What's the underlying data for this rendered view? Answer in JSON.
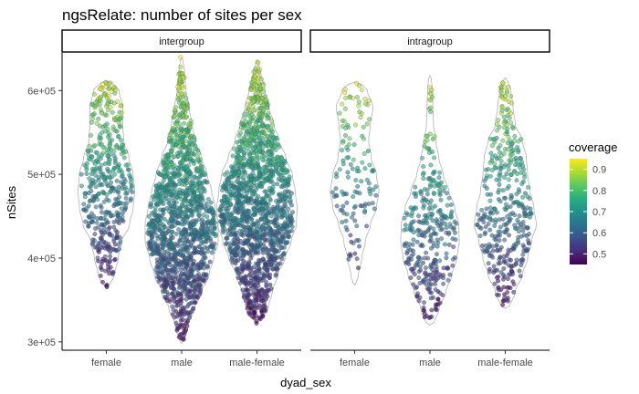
{
  "chart_data": {
    "type": "scatter",
    "subtype": "violin-with-jittered-points",
    "title": "ngsRelate: number of sites per sex",
    "xlabel": "dyad_sex",
    "ylabel": "nSites",
    "categories": [
      "female",
      "male",
      "male-female"
    ],
    "y_ticks": [
      300000,
      400000,
      500000,
      600000
    ],
    "y_tick_labels": [
      "3e+05",
      "4e+05",
      "5e+05",
      "6e+05"
    ],
    "ylim": [
      290000,
      645000
    ],
    "grid": false,
    "color_scale": "viridis",
    "legend": {
      "title": "coverage",
      "position": "right",
      "range": [
        0.45,
        0.95
      ],
      "ticks": [
        0.5,
        0.6,
        0.7,
        0.8,
        0.9
      ],
      "tick_labels": [
        "0.5",
        "0.6",
        "0.7",
        "0.8",
        "0.9"
      ]
    },
    "panels": [
      {
        "label": "intergroup",
        "groups": [
          {
            "category": "female",
            "n_points": 450,
            "min": 365000,
            "max": 612000,
            "median": 490000,
            "profile": [
              [
                365000,
                0.08
              ],
              [
                380000,
                0.28
              ],
              [
                400000,
                0.42
              ],
              [
                420000,
                0.55
              ],
              [
                440000,
                0.82
              ],
              [
                460000,
                0.95
              ],
              [
                480000,
                1.0
              ],
              [
                500000,
                0.95
              ],
              [
                520000,
                0.8
              ],
              [
                540000,
                0.62
              ],
              [
                560000,
                0.58
              ],
              [
                580000,
                0.58
              ],
              [
                600000,
                0.45
              ],
              [
                612000,
                0.15
              ]
            ]
          },
          {
            "category": "male",
            "n_points": 1350,
            "min": 298000,
            "max": 640000,
            "median": 440000,
            "profile": [
              [
                298000,
                0.05
              ],
              [
                320000,
                0.18
              ],
              [
                340000,
                0.35
              ],
              [
                360000,
                0.55
              ],
              [
                380000,
                0.75
              ],
              [
                400000,
                0.88
              ],
              [
                420000,
                1.0
              ],
              [
                440000,
                1.0
              ],
              [
                460000,
                0.92
              ],
              [
                480000,
                0.82
              ],
              [
                500000,
                0.7
              ],
              [
                520000,
                0.55
              ],
              [
                540000,
                0.38
              ],
              [
                560000,
                0.28
              ],
              [
                580000,
                0.2
              ],
              [
                600000,
                0.12
              ],
              [
                620000,
                0.08
              ],
              [
                640000,
                0.03
              ]
            ]
          },
          {
            "category": "male-female",
            "n_points": 1500,
            "min": 322000,
            "max": 635000,
            "median": 465000,
            "profile": [
              [
                322000,
                0.05
              ],
              [
                340000,
                0.28
              ],
              [
                360000,
                0.38
              ],
              [
                380000,
                0.52
              ],
              [
                400000,
                0.7
              ],
              [
                420000,
                0.85
              ],
              [
                440000,
                0.98
              ],
              [
                460000,
                1.0
              ],
              [
                480000,
                0.95
              ],
              [
                500000,
                0.88
              ],
              [
                520000,
                0.72
              ],
              [
                540000,
                0.55
              ],
              [
                560000,
                0.42
              ],
              [
                580000,
                0.3
              ],
              [
                600000,
                0.2
              ],
              [
                620000,
                0.1
              ],
              [
                635000,
                0.03
              ]
            ]
          }
        ]
      },
      {
        "label": "intragroup",
        "groups": [
          {
            "category": "female",
            "n_points": 130,
            "min": 368000,
            "max": 610000,
            "median": 480000,
            "profile": [
              [
                368000,
                0.05
              ],
              [
                380000,
                0.15
              ],
              [
                400000,
                0.28
              ],
              [
                420000,
                0.42
              ],
              [
                440000,
                0.62
              ],
              [
                460000,
                0.85
              ],
              [
                480000,
                0.95
              ],
              [
                500000,
                0.85
              ],
              [
                520000,
                0.65
              ],
              [
                540000,
                0.55
              ],
              [
                560000,
                0.62
              ],
              [
                580000,
                0.72
              ],
              [
                600000,
                0.5
              ],
              [
                610000,
                0.2
              ]
            ]
          },
          {
            "category": "male",
            "n_points": 330,
            "min": 320000,
            "max": 618000,
            "median": 430000,
            "profile": [
              [
                320000,
                0.12
              ],
              [
                340000,
                0.32
              ],
              [
                360000,
                0.55
              ],
              [
                380000,
                0.75
              ],
              [
                400000,
                0.92
              ],
              [
                420000,
                1.0
              ],
              [
                440000,
                0.98
              ],
              [
                460000,
                0.85
              ],
              [
                480000,
                0.65
              ],
              [
                500000,
                0.45
              ],
              [
                520000,
                0.3
              ],
              [
                540000,
                0.2
              ],
              [
                560000,
                0.12
              ],
              [
                580000,
                0.1
              ],
              [
                600000,
                0.08
              ],
              [
                618000,
                0.04
              ]
            ]
          },
          {
            "category": "male-female",
            "n_points": 390,
            "min": 340000,
            "max": 615000,
            "median": 455000,
            "profile": [
              [
                340000,
                0.12
              ],
              [
                360000,
                0.32
              ],
              [
                380000,
                0.55
              ],
              [
                400000,
                0.72
              ],
              [
                420000,
                0.85
              ],
              [
                440000,
                1.0
              ],
              [
                460000,
                0.92
              ],
              [
                480000,
                0.8
              ],
              [
                500000,
                0.72
              ],
              [
                520000,
                0.68
              ],
              [
                540000,
                0.55
              ],
              [
                560000,
                0.32
              ],
              [
                580000,
                0.25
              ],
              [
                600000,
                0.18
              ],
              [
                615000,
                0.06
              ]
            ]
          }
        ]
      }
    ]
  }
}
